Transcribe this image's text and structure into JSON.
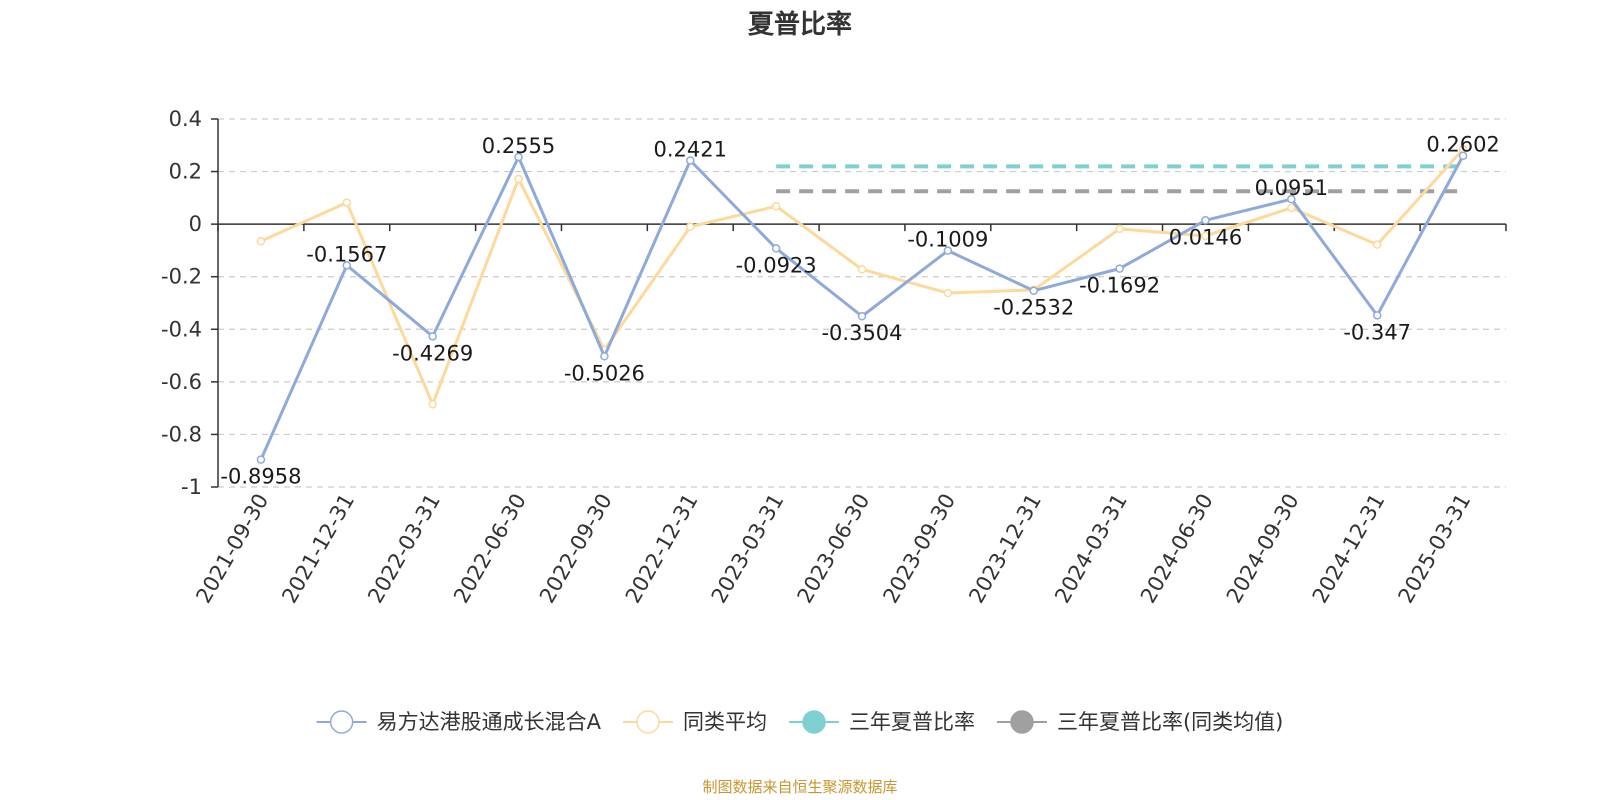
{
  "chart_data": {
    "type": "line",
    "title": "夏普比率",
    "categories": [
      "2021-09-30",
      "2021-12-31",
      "2022-03-31",
      "2022-06-30",
      "2022-09-30",
      "2022-12-31",
      "2023-03-31",
      "2023-06-30",
      "2023-09-30",
      "2023-12-31",
      "2024-03-31",
      "2024-06-30",
      "2024-09-30",
      "2024-12-31",
      "2025-03-31"
    ],
    "ylim": [
      -1,
      0.4
    ],
    "yticks": [
      0.4,
      0.2,
      0,
      -0.2,
      -0.4,
      -0.6,
      -0.8,
      -1
    ],
    "grid": true,
    "legend_position": "bottom",
    "series": [
      {
        "name": "易方达港股通成长混合A",
        "color": "#8eaadb",
        "values": [
          -0.8958,
          -0.1567,
          -0.4269,
          0.2555,
          -0.5026,
          0.2421,
          -0.0923,
          -0.3504,
          -0.1009,
          -0.2532,
          -0.1692,
          0.0146,
          0.0951,
          -0.347,
          0.2602
        ],
        "labels": [
          "-0.8958",
          "-0.1567",
          "-0.4269",
          "0.2555",
          "-0.5026",
          "0.2421",
          "-0.0923",
          "-0.3504",
          "-0.1009",
          "-0.2532",
          "-0.1692",
          "0.0146",
          "0.0951",
          "-0.347",
          "0.2602"
        ]
      },
      {
        "name": "同类平均",
        "color": "#fdd99b",
        "values": [
          -0.065,
          0.082,
          -0.685,
          0.172,
          -0.478,
          -0.01,
          0.068,
          -0.172,
          -0.262,
          -0.25,
          -0.018,
          -0.045,
          0.062,
          -0.078,
          0.285
        ]
      }
    ],
    "reference_lines": [
      {
        "name": "三年夏普比率",
        "color": "#7fd1d1",
        "value": 0.22,
        "x_start": "2023-03-31",
        "x_end": "2025-03-31"
      },
      {
        "name": "三年夏普比率(同类均值)",
        "color": "#a0a0a0",
        "value": 0.125,
        "x_start": "2023-03-31",
        "x_end": "2025-03-31"
      }
    ]
  },
  "source_text": "制图数据来自恒生聚源数据库"
}
